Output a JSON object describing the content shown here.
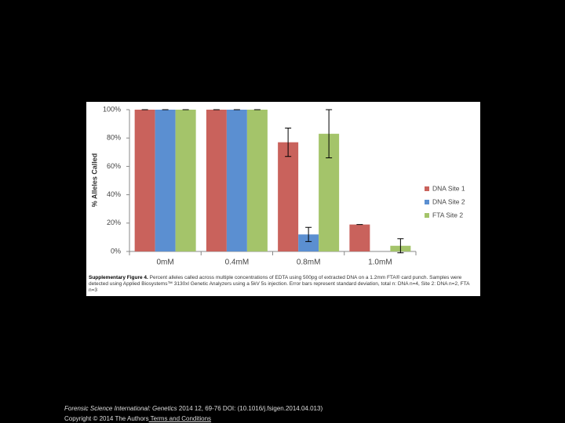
{
  "chart_data": {
    "type": "bar",
    "y_label": "% Alleles Called",
    "categories": [
      "0mM",
      "0.4mM",
      "0.8mM",
      "1.0mM"
    ],
    "series": [
      {
        "name": "DNA Site 1",
        "color": "#c9625c",
        "values": [
          100,
          100,
          77,
          19
        ],
        "errors": [
          0,
          0,
          10,
          0
        ]
      },
      {
        "name": "DNA Site 2",
        "color": "#5b8fd1",
        "values": [
          100,
          100,
          12,
          0
        ],
        "errors": [
          0,
          0,
          5,
          null
        ]
      },
      {
        "name": "FTA Site 2",
        "color": "#a4c46a",
        "values": [
          100,
          100,
          83,
          4
        ],
        "errors": [
          0,
          0,
          17,
          5
        ]
      }
    ],
    "ylim": [
      0,
      100
    ],
    "yticks": [
      {
        "value": 0,
        "label": "0%"
      },
      {
        "value": 20,
        "label": "20%"
      },
      {
        "value": 40,
        "label": "40%"
      },
      {
        "value": 60,
        "label": "60%"
      },
      {
        "value": 80,
        "label": "80%"
      },
      {
        "value": 100,
        "label": "100%"
      }
    ],
    "legend": "right"
  },
  "caption": {
    "label": "Supplementary Figure 4.",
    "text": "Percent alleles called across multiple concentrations of EDTA using 500pg of extracted DNA on a 1.2mm FTA® card punch. Samples were detected using Applied Biosystems™ 3130xl Genetic Analyzers using a 5kV 5s injection. Error bars represent standard deviation, total n: DNA n=4, Site 2: DNA n=2, FTA n=3"
  },
  "footer": {
    "journal": "Forensic Science International: Genetics",
    "citation": " 2014 12, 69-76 DOI: (10.1016/j.fsigen.2014.04.013)",
    "copyright": "Copyright © 2014 The Authors",
    "link": " Terms and Conditions"
  }
}
